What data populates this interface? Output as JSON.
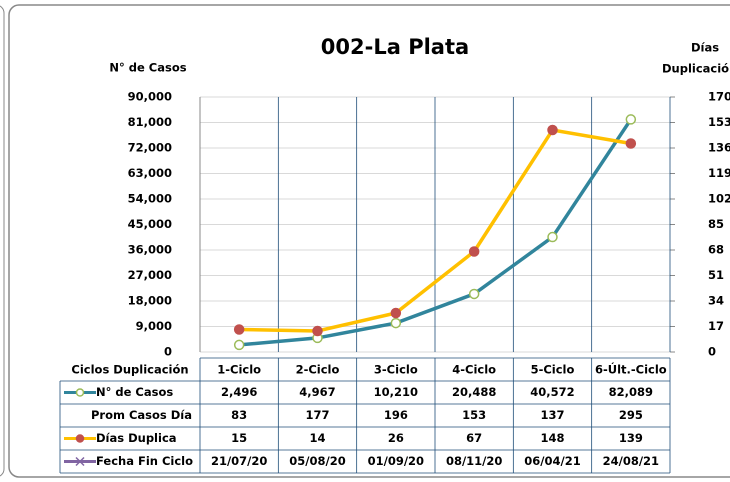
{
  "chart_data": {
    "type": "line",
    "title": "002-La Plata",
    "ylabel": "N° de Casos",
    "y2label": [
      "Días",
      "Duplicació"
    ],
    "xlabel": "Ciclos Duplicación",
    "categories": [
      "1-Ciclo",
      "2-Ciclo",
      "3-Ciclo",
      "4-Ciclo",
      "5-Ciclo",
      "6-Últ.-Ciclo"
    ],
    "ylim": [
      0,
      90000
    ],
    "yticks": [
      0,
      {
        "value": 9000,
        "label": "9,000"
      },
      {
        "value": 18000,
        "label": "18,000"
      },
      {
        "value": 27000,
        "label": "27,000"
      },
      {
        "value": 36000,
        "label": "36,000"
      },
      {
        "value": 45000,
        "label": "45,000"
      },
      {
        "value": 54000,
        "label": "54,000"
      },
      {
        "value": 63000,
        "label": "63,000"
      },
      {
        "value": 72000,
        "label": "72,000"
      },
      {
        "value": 81000,
        "label": "81,000"
      },
      {
        "value": 90000,
        "label": "90,000"
      }
    ],
    "y2lim": [
      0,
      170
    ],
    "y2ticks": [
      0,
      17,
      34,
      51,
      68,
      85,
      102,
      119,
      136,
      153,
      170
    ],
    "series": [
      {
        "name": "N° de Casos",
        "color": "#31859c",
        "marker_color": "#9bbb59",
        "values": [
          2496,
          4967,
          10210,
          20488,
          40572,
          82089
        ],
        "value_labels": [
          "2,496",
          "4,967",
          "10,210",
          "20,488",
          "40,572",
          "82,089"
        ]
      },
      {
        "name": "Prom Casos Día",
        "values": [
          83,
          177,
          196,
          153,
          137,
          295
        ]
      },
      {
        "name": "Días Duplica",
        "color": "#ffc000",
        "marker_color": "#c0504d",
        "axis": "y2",
        "values": [
          15,
          14,
          26,
          67,
          148,
          139
        ]
      },
      {
        "name": "Fecha Fin Ciclo",
        "color": "#8064a2",
        "values": [
          "21/07/20",
          "05/08/20",
          "01/09/20",
          "08/11/20",
          "06/04/21",
          "24/08/21"
        ]
      }
    ]
  }
}
